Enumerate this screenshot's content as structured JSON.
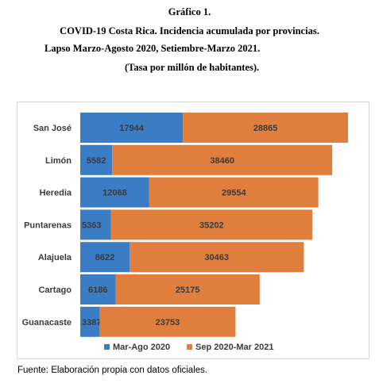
{
  "title_lines": [
    "Gráfico 1.",
    "COVID-19 Costa Rica. Incidencia acumulada por provincias.",
    "Lapso Marzo-Agosto 2020, Setiembre-Marzo 2021.",
    "(Tasa por millón de habitantes)."
  ],
  "source": "Fuente: Elaboración propia con datos oficiales.",
  "colors": {
    "series1": "#3b7dc4",
    "series2": "#e07f3d",
    "label_text": "#3a3a3a",
    "frame": "#d9d9d9"
  },
  "chart_data": {
    "type": "bar",
    "orientation": "horizontal",
    "stacked": true,
    "categories": [
      "San José",
      "Limón",
      "Heredia",
      "Puntarenas",
      "Alajuela",
      "Cartago",
      "Guanacaste"
    ],
    "series": [
      {
        "name": "Mar-Ago 2020",
        "values": [
          17944,
          5582,
          12068,
          5363,
          8622,
          6186,
          3387
        ]
      },
      {
        "name": "Sep 2020-Mar 2021",
        "values": [
          28865,
          38460,
          29554,
          35202,
          30463,
          25175,
          23753
        ]
      }
    ],
    "xlim": [
      0,
      50000
    ],
    "grid": false,
    "axis_visible": false,
    "legend_position": "bottom"
  }
}
